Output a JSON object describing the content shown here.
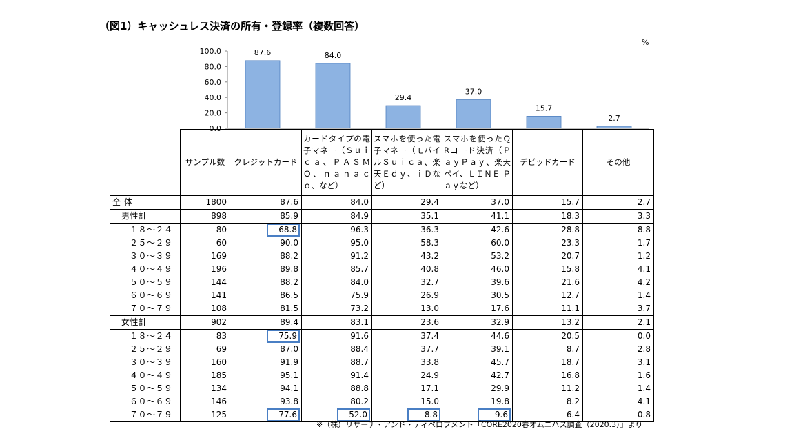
{
  "title": "（図1）キャッシュレス決済の所有・登録率（複数回答）",
  "unit": "%",
  "source_note": "※（株）リサーチ・アンド・ディベロプメント「CORE2020春オムニバス調査（2020.3）」より",
  "chart_data": {
    "type": "bar",
    "categories": [
      "クレジットカード",
      "カードタイプの電子マネー（Ｓｕｉｃａ、ＰＡＳＭＯ、ｎａｎａｃｏ、など）",
      "スマホを使った電子マネー（モバイルＳｕｉｃａ、楽天Ｅｄｙ、ｉＤなど）",
      "スマホを使ったＱRコード決済（ＰａｙＰａｙ、楽天ペイ、ＬＩＮＥ Ｐａｙなど）",
      "デビッドカード",
      "その他"
    ],
    "values": [
      87.6,
      84.0,
      29.4,
      37.0,
      15.7,
      2.7
    ],
    "value_labels": [
      "87.6",
      "84.0",
      "29.4",
      "37.0",
      "15.7",
      "2.7"
    ],
    "yticks": [
      "100.0",
      "80.0",
      "60.0",
      "40.0",
      "20.0",
      "0.0"
    ],
    "ylim": [
      0,
      100
    ],
    "bar_color": "#8db3e2",
    "bar_edge_color": "#4f7fbf",
    "highlight_color": "#4a7fc4"
  },
  "table": {
    "headers": [
      "サンプル数",
      "クレジットカード",
      "カードタイプの電子マネー（Ｓｕｉｃａ、ＰＡＳＭＯ、ｎａｎａｃｏ、など）",
      "スマホを使った電子マネー（モバイルＳｕｉｃａ、楽天Ｅｄｙ、ｉＤなど）",
      "スマホを使ったＱRコード決済（ＰａｙＰａｙ、楽天ペイ、ＬＩＮＥ Ｐａｙなど）",
      "デビッドカード",
      "その他"
    ],
    "rows": [
      {
        "label": "全 体",
        "level": 0,
        "group_start": true,
        "cells": [
          "1800",
          "87.6",
          "84.0",
          "29.4",
          "37.0",
          "15.7",
          "2.7"
        ],
        "highlight": []
      },
      {
        "label": "男性計",
        "level": 1,
        "group_start": true,
        "cells": [
          "898",
          "85.9",
          "84.9",
          "35.1",
          "41.1",
          "18.3",
          "3.3"
        ],
        "highlight": []
      },
      {
        "label": "１８～２４",
        "level": 2,
        "group_start": true,
        "cells": [
          "80",
          "68.8",
          "96.3",
          "36.3",
          "42.6",
          "28.8",
          "8.8"
        ],
        "highlight": [
          1
        ]
      },
      {
        "label": "２５～２９",
        "level": 2,
        "group_start": false,
        "cells": [
          "60",
          "90.0",
          "95.0",
          "58.3",
          "60.0",
          "23.3",
          "1.7"
        ],
        "highlight": []
      },
      {
        "label": "３０～３９",
        "level": 2,
        "group_start": false,
        "cells": [
          "169",
          "88.2",
          "91.2",
          "43.2",
          "53.2",
          "20.7",
          "1.2"
        ],
        "highlight": []
      },
      {
        "label": "４０～４９",
        "level": 2,
        "group_start": false,
        "cells": [
          "196",
          "89.8",
          "85.7",
          "40.8",
          "46.0",
          "15.8",
          "4.1"
        ],
        "highlight": []
      },
      {
        "label": "５０～５９",
        "level": 2,
        "group_start": false,
        "cells": [
          "144",
          "88.2",
          "84.0",
          "32.7",
          "39.6",
          "21.6",
          "4.2"
        ],
        "highlight": []
      },
      {
        "label": "６０～６９",
        "level": 2,
        "group_start": false,
        "cells": [
          "141",
          "86.5",
          "75.9",
          "26.9",
          "30.5",
          "12.7",
          "1.4"
        ],
        "highlight": []
      },
      {
        "label": "７０～７９",
        "level": 2,
        "group_start": false,
        "cells": [
          "108",
          "81.5",
          "73.2",
          "13.0",
          "17.6",
          "11.1",
          "3.7"
        ],
        "highlight": []
      },
      {
        "label": "女性計",
        "level": 1,
        "group_start": true,
        "cells": [
          "902",
          "89.4",
          "83.1",
          "23.6",
          "32.9",
          "13.2",
          "2.1"
        ],
        "highlight": []
      },
      {
        "label": "１８～２４",
        "level": 2,
        "group_start": true,
        "cells": [
          "83",
          "75.9",
          "91.6",
          "37.4",
          "44.6",
          "20.5",
          "0.0"
        ],
        "highlight": [
          1
        ]
      },
      {
        "label": "２５～２９",
        "level": 2,
        "group_start": false,
        "cells": [
          "69",
          "87.0",
          "88.4",
          "37.7",
          "39.1",
          "8.7",
          "2.8"
        ],
        "highlight": []
      },
      {
        "label": "３０～３９",
        "level": 2,
        "group_start": false,
        "cells": [
          "160",
          "91.9",
          "88.7",
          "33.8",
          "45.7",
          "18.7",
          "3.1"
        ],
        "highlight": []
      },
      {
        "label": "４０～４９",
        "level": 2,
        "group_start": false,
        "cells": [
          "185",
          "95.1",
          "91.4",
          "24.9",
          "42.7",
          "16.8",
          "1.6"
        ],
        "highlight": []
      },
      {
        "label": "５０～５９",
        "level": 2,
        "group_start": false,
        "cells": [
          "134",
          "94.1",
          "88.8",
          "17.1",
          "29.9",
          "11.2",
          "1.4"
        ],
        "highlight": []
      },
      {
        "label": "６０～６９",
        "level": 2,
        "group_start": false,
        "cells": [
          "146",
          "93.8",
          "80.2",
          "15.0",
          "19.8",
          "8.2",
          "4.1"
        ],
        "highlight": []
      },
      {
        "label": "７０～７９",
        "level": 2,
        "group_start": false,
        "cells": [
          "125",
          "77.6",
          "52.0",
          "8.8",
          "9.6",
          "6.4",
          "0.8"
        ],
        "highlight": [
          1,
          2,
          3,
          4
        ]
      }
    ]
  }
}
